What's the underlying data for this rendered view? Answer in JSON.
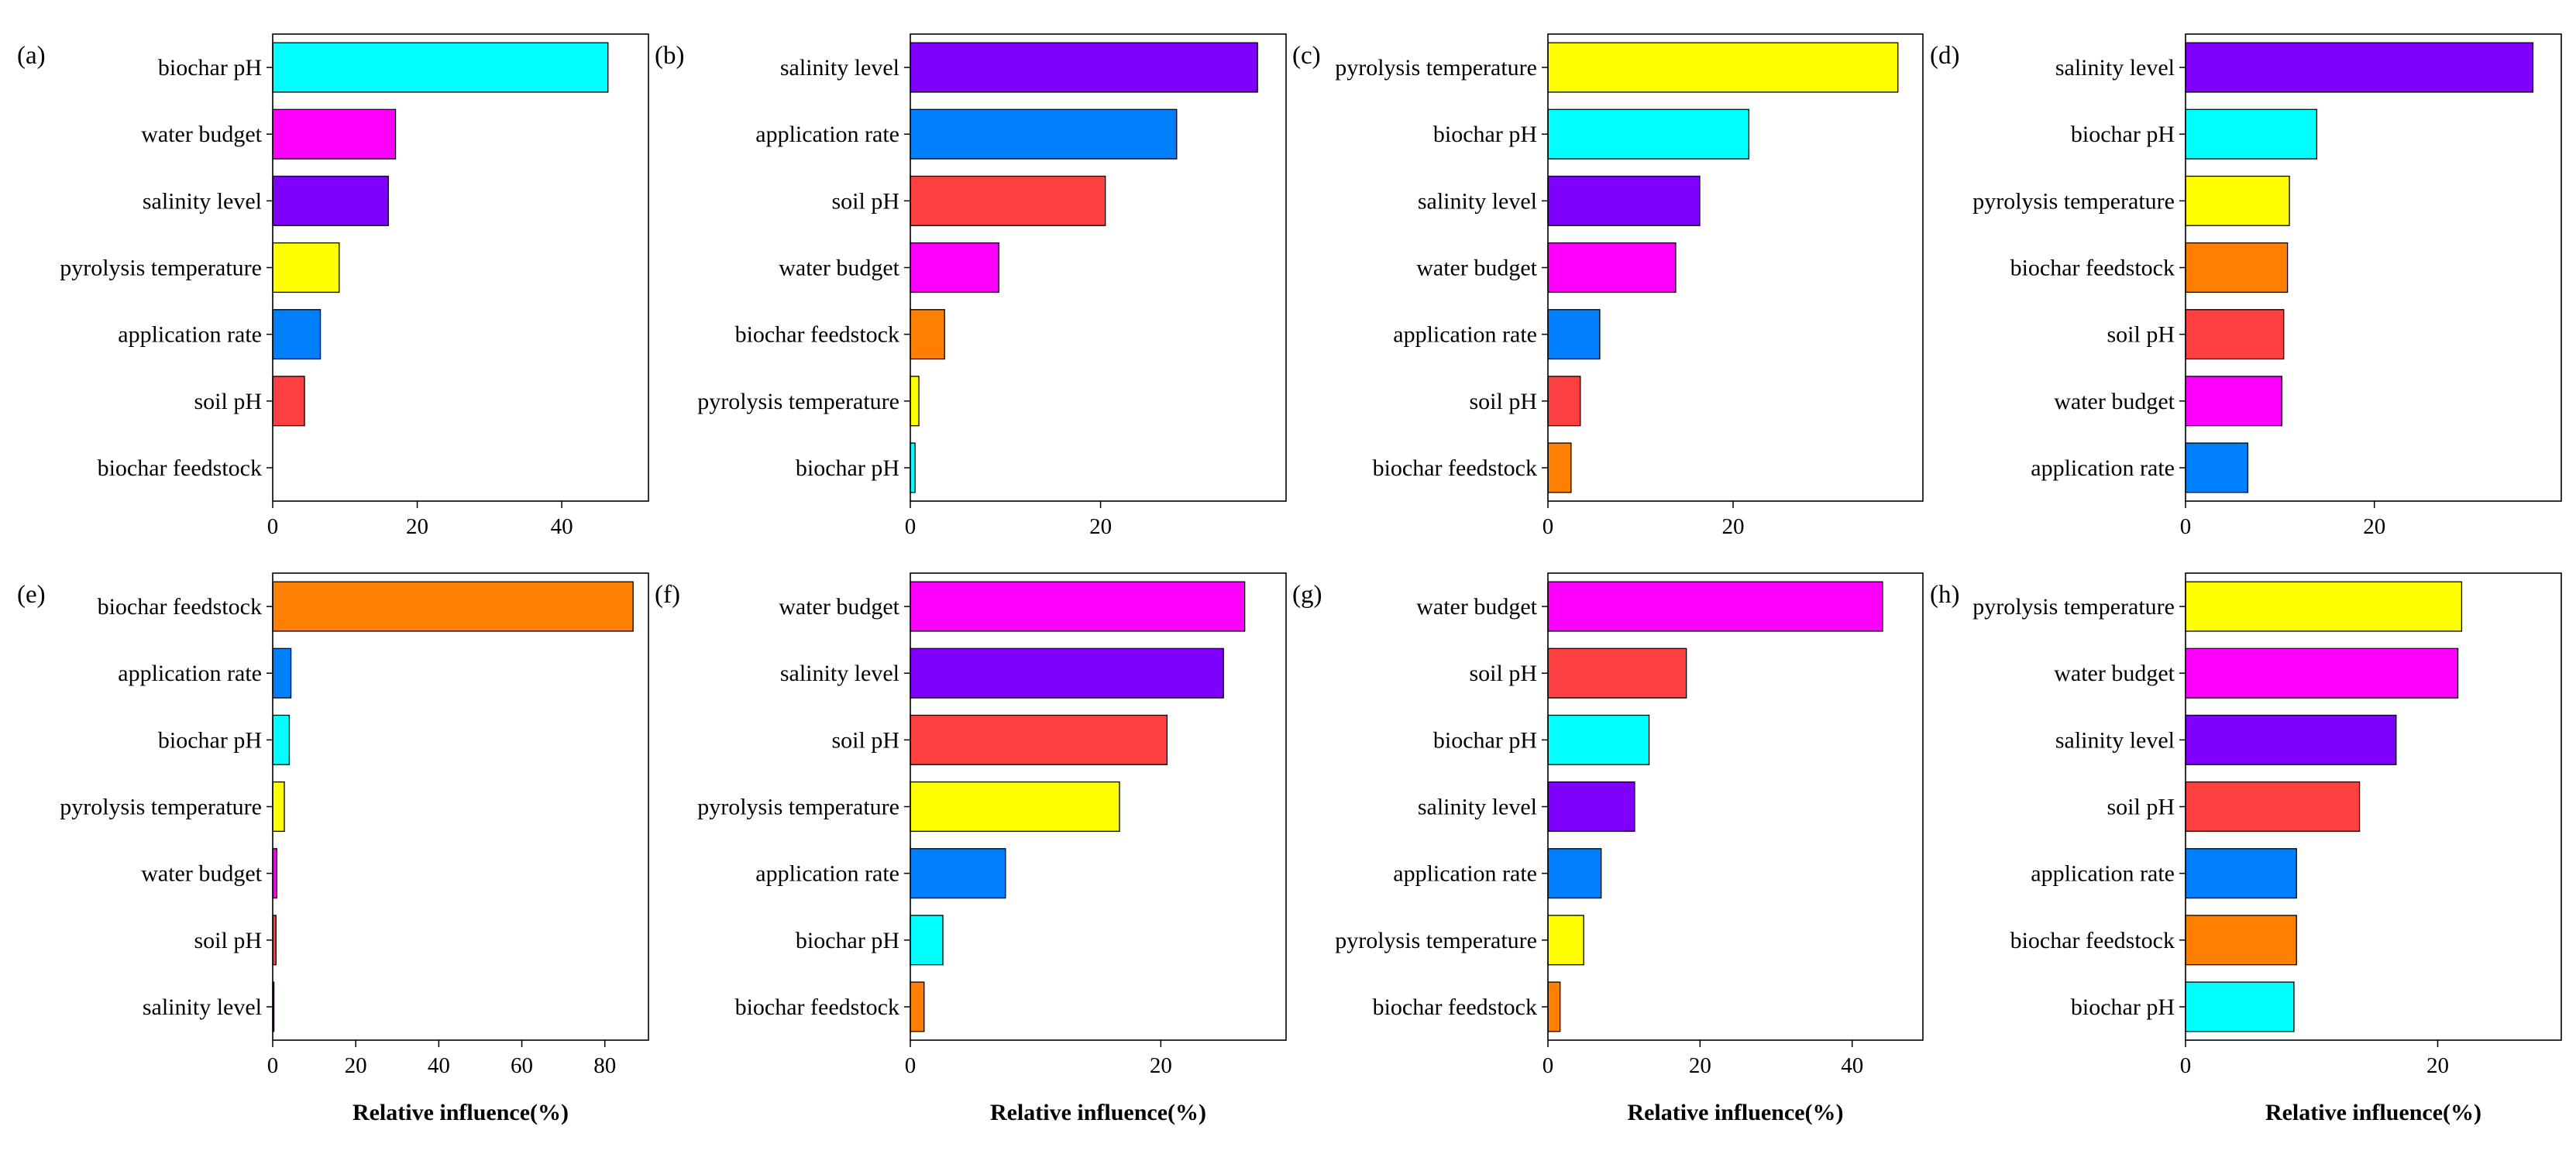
{
  "chart_data": [
    {
      "type": "bar",
      "panel_label": "(a)",
      "categories": [
        "biochar pH",
        "water budget",
        "salinity level",
        "pyrolysis temperature",
        "application rate",
        "soil pH",
        "biochar feedstock"
      ],
      "values": [
        46.4,
        17.0,
        16.0,
        9.2,
        6.6,
        4.4,
        0.0
      ],
      "colors": [
        "#00ffff",
        "#ff00ff",
        "#7f00ff",
        "#ffff00",
        "#007fff",
        "#ff4040",
        "#ff7f00"
      ],
      "xlim": [
        0,
        52
      ],
      "xticks": [
        0,
        20,
        40
      ],
      "xlabel": ""
    },
    {
      "type": "bar",
      "panel_label": "(b)",
      "categories": [
        "salinity level",
        "application rate",
        "soil pH",
        "water budget",
        "biochar feedstock",
        "pyrolysis temperature",
        "biochar pH"
      ],
      "values": [
        36.5,
        28.0,
        20.5,
        9.3,
        3.6,
        0.9,
        0.5
      ],
      "colors": [
        "#7f00ff",
        "#007fff",
        "#ff4040",
        "#ff00ff",
        "#ff7f00",
        "#ffff00",
        "#00ffff"
      ],
      "xlim": [
        0,
        39.5
      ],
      "xticks": [
        0,
        20
      ],
      "xlabel": ""
    },
    {
      "type": "bar",
      "panel_label": "(c)",
      "categories": [
        "pyrolysis temperature",
        "biochar pH",
        "salinity level",
        "water budget",
        "application rate",
        "soil pH",
        "biochar feedstock"
      ],
      "values": [
        37.8,
        21.7,
        16.4,
        13.8,
        5.6,
        3.5,
        2.5
      ],
      "colors": [
        "#ffff00",
        "#00ffff",
        "#7f00ff",
        "#ff00ff",
        "#007fff",
        "#ff4040",
        "#ff7f00"
      ],
      "xlim": [
        0,
        40.5
      ],
      "xticks": [
        0,
        20
      ],
      "xlabel": ""
    },
    {
      "type": "bar",
      "panel_label": "(d)",
      "categories": [
        "salinity level",
        "biochar pH",
        "pyrolysis temperature",
        "biochar feedstock",
        "soil pH",
        "water budget",
        "application rate"
      ],
      "values": [
        36.8,
        13.9,
        11.0,
        10.8,
        10.4,
        10.2,
        6.6
      ],
      "colors": [
        "#7f00ff",
        "#00ffff",
        "#ffff00",
        "#ff7f00",
        "#ff4040",
        "#ff00ff",
        "#007fff"
      ],
      "xlim": [
        0,
        39.8
      ],
      "xticks": [
        0,
        20
      ],
      "xlabel": ""
    },
    {
      "type": "bar",
      "panel_label": "(e)",
      "categories": [
        "biochar feedstock",
        "application rate",
        "biochar pH",
        "pyrolysis temperature",
        "water budget",
        "soil pH",
        "salinity level"
      ],
      "values": [
        86.8,
        4.4,
        4.0,
        2.8,
        1.0,
        0.8,
        0.3
      ],
      "colors": [
        "#ff7f00",
        "#007fff",
        "#00ffff",
        "#ffff00",
        "#ff00ff",
        "#ff4040",
        "#7f00ff"
      ],
      "xlim": [
        0,
        90.5
      ],
      "xticks": [
        0,
        20,
        40,
        60,
        80
      ],
      "xlabel": "Relative influence(%)"
    },
    {
      "type": "bar",
      "panel_label": "(f)",
      "categories": [
        "water budget",
        "salinity level",
        "soil pH",
        "pyrolysis temperature",
        "application rate",
        "biochar pH",
        "biochar feedstock"
      ],
      "values": [
        26.7,
        25.0,
        20.5,
        16.7,
        7.6,
        2.6,
        1.1
      ],
      "colors": [
        "#ff00ff",
        "#7f00ff",
        "#ff4040",
        "#ffff00",
        "#007fff",
        "#00ffff",
        "#ff7f00"
      ],
      "xlim": [
        0,
        30.0
      ],
      "xticks": [
        0,
        20
      ],
      "xlabel": "Relative influence(%)"
    },
    {
      "type": "bar",
      "panel_label": "(g)",
      "categories": [
        "water budget",
        "soil pH",
        "biochar pH",
        "salinity level",
        "application rate",
        "pyrolysis temperature",
        "biochar feedstock"
      ],
      "values": [
        44.0,
        18.2,
        13.3,
        11.4,
        7.0,
        4.7,
        1.6
      ],
      "colors": [
        "#ff00ff",
        "#ff4040",
        "#00ffff",
        "#7f00ff",
        "#007fff",
        "#ffff00",
        "#ff7f00"
      ],
      "xlim": [
        0,
        49.3
      ],
      "xticks": [
        0,
        20,
        40
      ],
      "xlabel": "Relative influence(%)"
    },
    {
      "type": "bar",
      "panel_label": "(h)",
      "categories": [
        "pyrolysis temperature",
        "water budget",
        "salinity level",
        "soil pH",
        "application rate",
        "biochar feedstock",
        "biochar pH"
      ],
      "values": [
        21.9,
        21.6,
        16.7,
        13.8,
        8.8,
        8.8,
        8.6
      ],
      "colors": [
        "#ffff00",
        "#ff00ff",
        "#7f00ff",
        "#ff4040",
        "#007fff",
        "#ff7f00",
        "#00ffff"
      ],
      "xlim": [
        0,
        29.8
      ],
      "xticks": [
        0,
        20
      ],
      "xlabel": "Relative influence(%)"
    }
  ]
}
